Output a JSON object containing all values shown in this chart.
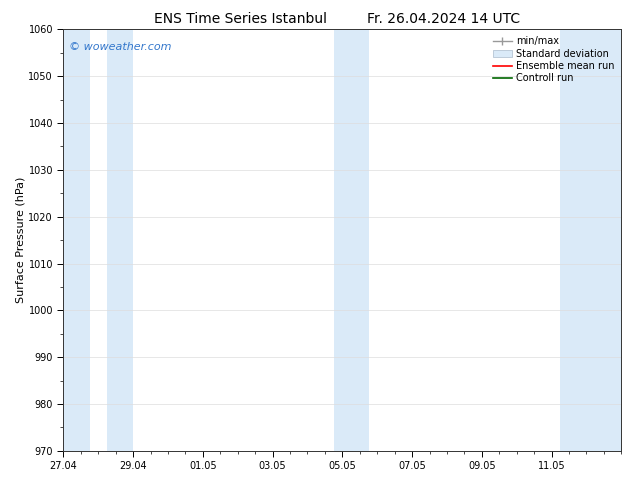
{
  "title_left": "ENS Time Series Istanbul",
  "title_right": "Fr. 26.04.2024 14 UTC",
  "ylabel": "Surface Pressure (hPa)",
  "ylim": [
    970,
    1060
  ],
  "yticks": [
    970,
    980,
    990,
    1000,
    1010,
    1020,
    1030,
    1040,
    1050,
    1060
  ],
  "xlim_start": 0,
  "xlim_end": 16,
  "xtick_labels": [
    "27.04",
    "29.04",
    "01.05",
    "03.05",
    "05.05",
    "07.05",
    "09.05",
    "11.05"
  ],
  "xtick_positions": [
    0,
    2,
    4,
    6,
    8,
    10,
    12,
    14
  ],
  "watermark": "© woweather.com",
  "watermark_color": "#3377cc",
  "shaded_bands": [
    {
      "x_start": 0.0,
      "x_end": 0.75
    },
    {
      "x_start": 1.25,
      "x_end": 2.0
    },
    {
      "x_start": 7.75,
      "x_end": 8.75
    },
    {
      "x_start": 14.25,
      "x_end": 16.0
    }
  ],
  "shaded_color": "#daeaf8",
  "legend_labels": [
    "min/max",
    "Standard deviation",
    "Ensemble mean run",
    "Controll run"
  ],
  "legend_colors_line": [
    "#999999",
    "#c0d0e0",
    "#ff0000",
    "#006600"
  ],
  "background_color": "#ffffff",
  "grid_color": "#dddddd",
  "title_fontsize": 10,
  "tick_fontsize": 7,
  "ylabel_fontsize": 8,
  "legend_fontsize": 7
}
